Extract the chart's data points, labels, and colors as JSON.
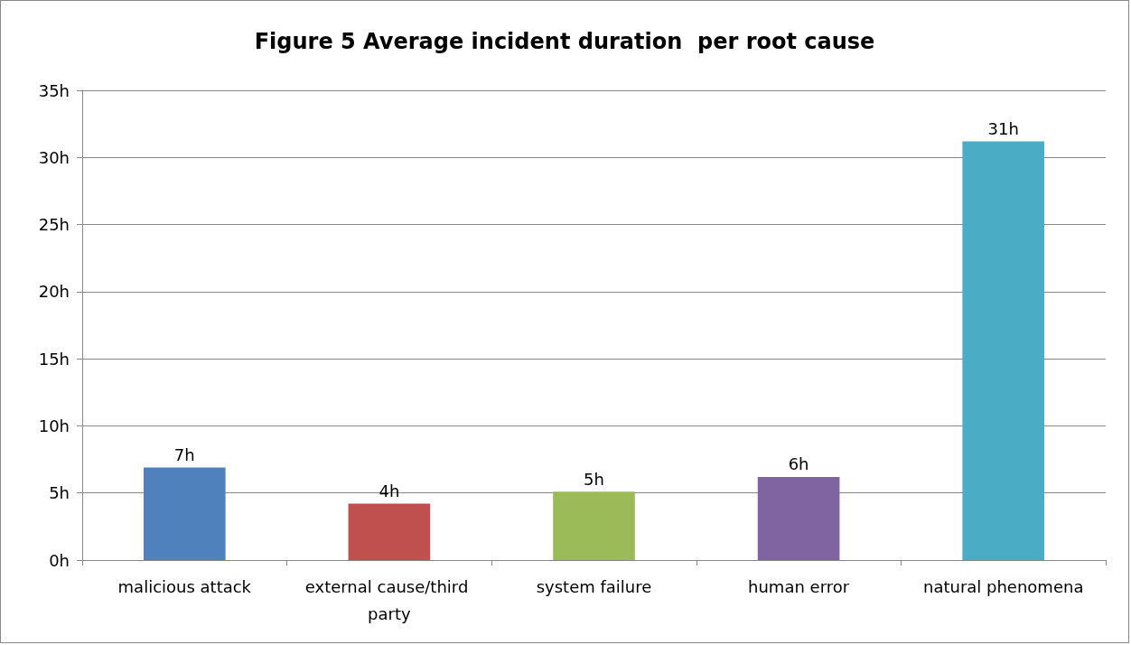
{
  "chart_data": {
    "type": "bar",
    "title": "Figure 5 Average incident duration  per root cause",
    "categories": [
      "malicious attack",
      "external cause/third party",
      "system failure",
      "human error",
      "natural phenomena"
    ],
    "values": [
      6.9,
      4.2,
      5.1,
      6.2,
      31.2
    ],
    "colors": [
      "#4f81bd",
      "#c0504d",
      "#9bbb59",
      "#8064a2",
      "#4bacc6"
    ],
    "value_labels": [
      "7h",
      "4h",
      "5h",
      "6h",
      "31h"
    ],
    "ylim": [
      0,
      35
    ],
    "yticks": [
      {
        "value": 0,
        "label": "0h"
      },
      {
        "value": 5,
        "label": "5h"
      },
      {
        "value": 10,
        "label": "10h"
      },
      {
        "value": 15,
        "label": "15h"
      },
      {
        "value": 20,
        "label": "20h"
      },
      {
        "value": 25,
        "label": "25h"
      },
      {
        "value": 30,
        "label": "30h"
      },
      {
        "value": 35,
        "label": "35h"
      }
    ],
    "grid": "y"
  }
}
